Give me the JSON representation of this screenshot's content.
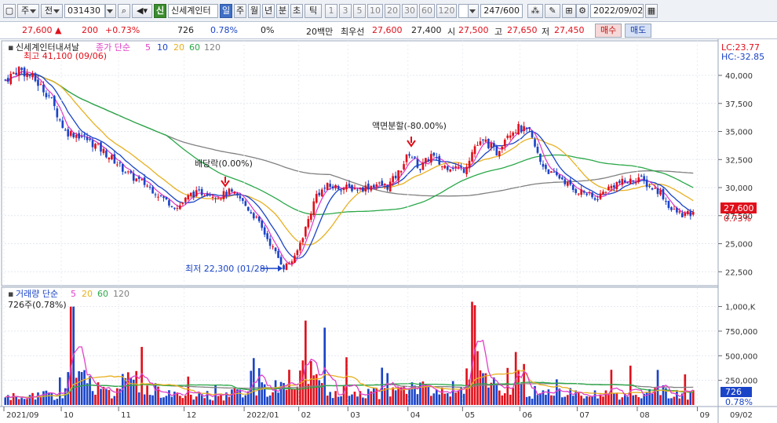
{
  "toolbar": {
    "market": "주",
    "prev": "전",
    "code": "031430",
    "badge": "신",
    "name": "신세계인터",
    "periods": [
      "일",
      "주",
      "월",
      "년",
      "분",
      "초",
      "틱"
    ],
    "active_period": "일",
    "minutes": [
      "1",
      "3",
      "5",
      "10",
      "20",
      "30",
      "60",
      "120"
    ],
    "count": "247/600",
    "date": "2022/09/02"
  },
  "quote": {
    "price": "27,600",
    "arrow": "▲",
    "change": "200",
    "change_pct": "+0.73%",
    "volume": "726",
    "volume_pct": "0.78%",
    "zero_pct": "0%",
    "label_20": "20백만",
    "best_label": "최우선",
    "best_ask": "27,600",
    "best_bid": "27,400",
    "open_label": "시",
    "open": "27,500",
    "high_label": "고",
    "high": "27,650",
    "low_label": "저",
    "low": "27,450",
    "buy_label": "매수",
    "sell_label": "매도"
  },
  "price_panel": {
    "title": "신세계인터내셔날",
    "legend_label": "종가 단순",
    "ma_periods": [
      "5",
      "10",
      "20",
      "60",
      "120"
    ],
    "lc": "LC:23.77",
    "hc": "HC:-32.85",
    "max_label": "최고 41,100 (09/06)",
    "min_label": "최저 22,300 (01/28)",
    "dividend_label": "배당락(0.00%)",
    "split_label": "액면분할(-80.00%)",
    "last_price": "27,600",
    "last_pct": "0.73%"
  },
  "volume_panel": {
    "legend_label": "거래량 단순",
    "ma_periods": [
      "5",
      "20",
      "60",
      "120"
    ],
    "current": "726주(0.78%)",
    "last_volume": "726",
    "last_pct": "0.78%"
  },
  "colors": {
    "up": "#e0101b",
    "down": "#1a44c8",
    "ma5": "#e040c8",
    "ma10": "#1a44c8",
    "ma20": "#e8b020",
    "ma60": "#2aa848",
    "ma120": "#808080"
  },
  "chart_data": {
    "type": "candlestick",
    "price_axis": {
      "ticks": [
        22500,
        25000,
        27500,
        30000,
        32500,
        35000,
        37500,
        40000
      ],
      "tick_labels": [
        "22,500",
        "25,000",
        "27,500",
        "30,000",
        "32,500",
        "35,000",
        "37,500",
        "40,000"
      ],
      "range": [
        21400,
        42800
      ]
    },
    "volume_axis": {
      "ticks": [
        250000,
        500000,
        750000,
        1000000
      ],
      "tick_labels": [
        "250,000",
        "500,000",
        "750,000",
        "1,000,K"
      ],
      "range": [
        0,
        1180000
      ]
    },
    "x_labels": [
      "2021/09",
      "10",
      "11",
      "12",
      "2022/01",
      "02",
      "03",
      "04",
      "05",
      "06",
      "07",
      "08",
      "09"
    ],
    "x_label_days": [
      0,
      21,
      42,
      66,
      88,
      108,
      126,
      148,
      168,
      189,
      210,
      232,
      254
    ],
    "end_date_label": "09/02",
    "price_keypoints": [
      [
        0,
        39600
      ],
      [
        5,
        40600
      ],
      [
        10,
        39800
      ],
      [
        16,
        38200
      ],
      [
        22,
        35000
      ],
      [
        28,
        34600
      ],
      [
        34,
        33600
      ],
      [
        40,
        32400
      ],
      [
        46,
        31000
      ],
      [
        52,
        30200
      ],
      [
        58,
        29000
      ],
      [
        63,
        28200
      ],
      [
        68,
        29400
      ],
      [
        74,
        29600
      ],
      [
        78,
        29200
      ],
      [
        82,
        29600
      ],
      [
        86,
        29000
      ],
      [
        92,
        27200
      ],
      [
        98,
        24600
      ],
      [
        102,
        22900
      ],
      [
        106,
        23700
      ],
      [
        110,
        26400
      ],
      [
        114,
        29400
      ],
      [
        118,
        30100
      ],
      [
        124,
        30000
      ],
      [
        130,
        29900
      ],
      [
        136,
        30300
      ],
      [
        140,
        30100
      ],
      [
        144,
        31300
      ],
      [
        148,
        33100
      ],
      [
        152,
        31700
      ],
      [
        156,
        32900
      ],
      [
        160,
        31900
      ],
      [
        164,
        31900
      ],
      [
        168,
        31600
      ],
      [
        172,
        33700
      ],
      [
        176,
        34100
      ],
      [
        180,
        33100
      ],
      [
        184,
        34900
      ],
      [
        188,
        35300
      ],
      [
        192,
        34900
      ],
      [
        196,
        32300
      ],
      [
        200,
        31200
      ],
      [
        204,
        30800
      ],
      [
        208,
        29800
      ],
      [
        212,
        29600
      ],
      [
        216,
        28900
      ],
      [
        220,
        29800
      ],
      [
        224,
        30400
      ],
      [
        228,
        30500
      ],
      [
        232,
        30900
      ],
      [
        236,
        30100
      ],
      [
        240,
        29600
      ],
      [
        244,
        28000
      ],
      [
        248,
        27600
      ],
      [
        252,
        27600
      ]
    ],
    "volume_keypoints": [
      [
        0,
        90000
      ],
      [
        20,
        120000
      ],
      [
        25,
        370000
      ],
      [
        40,
        140000
      ],
      [
        45,
        320000
      ],
      [
        60,
        120000
      ],
      [
        80,
        110000
      ],
      [
        100,
        230000
      ],
      [
        110,
        370000
      ],
      [
        112,
        420000
      ],
      [
        120,
        160000
      ],
      [
        140,
        140000
      ],
      [
        150,
        210000
      ],
      [
        160,
        170000
      ],
      [
        168,
        220000
      ],
      [
        172,
        1060000
      ],
      [
        174,
        360000
      ],
      [
        180,
        190000
      ],
      [
        200,
        140000
      ],
      [
        220,
        120000
      ],
      [
        240,
        160000
      ],
      [
        252,
        120000
      ]
    ]
  }
}
